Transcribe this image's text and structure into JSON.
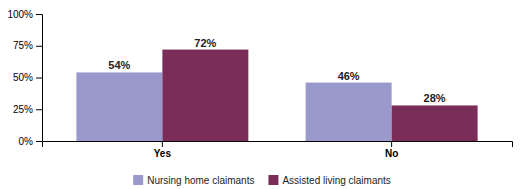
{
  "chart_data": {
    "type": "bar",
    "categories": [
      "Yes",
      "No"
    ],
    "series": [
      {
        "name": "Nursing home claimants",
        "color": "#9999cc",
        "values": [
          54,
          46
        ],
        "value_labels": [
          "54%",
          "46%"
        ]
      },
      {
        "name": "Assisted living claimants",
        "color": "#7b2d5a",
        "values": [
          72,
          28
        ],
        "value_labels": [
          "72%",
          "28%"
        ]
      }
    ],
    "ylim": [
      0,
      100
    ],
    "yticks": [
      {
        "value": 0,
        "label": "0%"
      },
      {
        "value": 25,
        "label": "25%"
      },
      {
        "value": 50,
        "label": "50%"
      },
      {
        "value": 75,
        "label": "75%"
      },
      {
        "value": 100,
        "label": "100%"
      }
    ],
    "data_labels": true,
    "grid": false,
    "legend": "bottom"
  }
}
